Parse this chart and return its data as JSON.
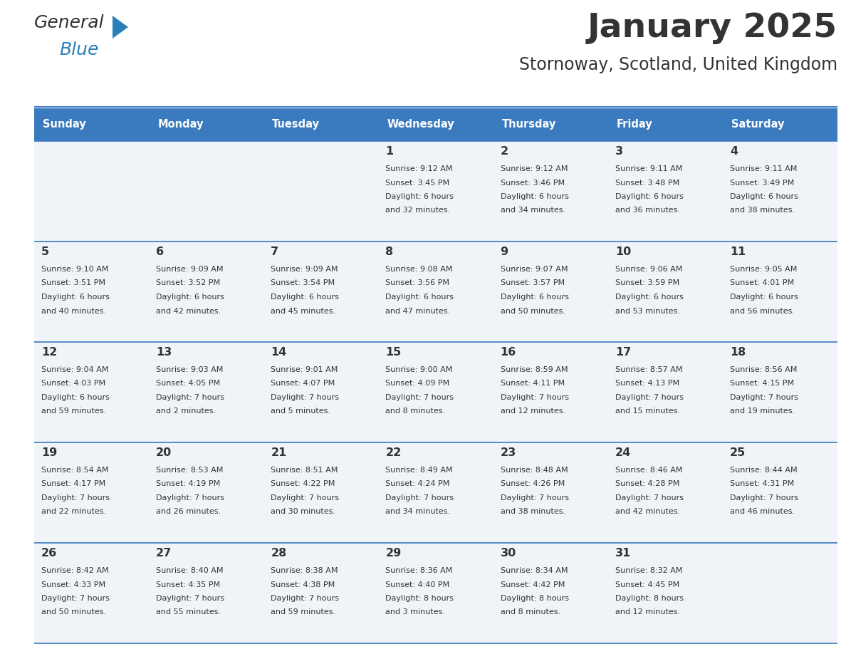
{
  "title": "January 2025",
  "subtitle": "Stornoway, Scotland, United Kingdom",
  "header_bg": "#3a7abf",
  "header_text": "#ffffff",
  "cell_bg": "#f0f4f8",
  "row_line_color": "#3a7abf",
  "text_color": "#333333",
  "days_of_week": [
    "Sunday",
    "Monday",
    "Tuesday",
    "Wednesday",
    "Thursday",
    "Friday",
    "Saturday"
  ],
  "calendar_data": [
    [
      {
        "day": "",
        "sunrise": "",
        "sunset": "",
        "daylight": ""
      },
      {
        "day": "",
        "sunrise": "",
        "sunset": "",
        "daylight": ""
      },
      {
        "day": "",
        "sunrise": "",
        "sunset": "",
        "daylight": ""
      },
      {
        "day": "1",
        "sunrise": "9:12 AM",
        "sunset": "3:45 PM",
        "daylight": "6 hours\nand 32 minutes."
      },
      {
        "day": "2",
        "sunrise": "9:12 AM",
        "sunset": "3:46 PM",
        "daylight": "6 hours\nand 34 minutes."
      },
      {
        "day": "3",
        "sunrise": "9:11 AM",
        "sunset": "3:48 PM",
        "daylight": "6 hours\nand 36 minutes."
      },
      {
        "day": "4",
        "sunrise": "9:11 AM",
        "sunset": "3:49 PM",
        "daylight": "6 hours\nand 38 minutes."
      }
    ],
    [
      {
        "day": "5",
        "sunrise": "9:10 AM",
        "sunset": "3:51 PM",
        "daylight": "6 hours\nand 40 minutes."
      },
      {
        "day": "6",
        "sunrise": "9:09 AM",
        "sunset": "3:52 PM",
        "daylight": "6 hours\nand 42 minutes."
      },
      {
        "day": "7",
        "sunrise": "9:09 AM",
        "sunset": "3:54 PM",
        "daylight": "6 hours\nand 45 minutes."
      },
      {
        "day": "8",
        "sunrise": "9:08 AM",
        "sunset": "3:56 PM",
        "daylight": "6 hours\nand 47 minutes."
      },
      {
        "day": "9",
        "sunrise": "9:07 AM",
        "sunset": "3:57 PM",
        "daylight": "6 hours\nand 50 minutes."
      },
      {
        "day": "10",
        "sunrise": "9:06 AM",
        "sunset": "3:59 PM",
        "daylight": "6 hours\nand 53 minutes."
      },
      {
        "day": "11",
        "sunrise": "9:05 AM",
        "sunset": "4:01 PM",
        "daylight": "6 hours\nand 56 minutes."
      }
    ],
    [
      {
        "day": "12",
        "sunrise": "9:04 AM",
        "sunset": "4:03 PM",
        "daylight": "6 hours\nand 59 minutes."
      },
      {
        "day": "13",
        "sunrise": "9:03 AM",
        "sunset": "4:05 PM",
        "daylight": "7 hours\nand 2 minutes."
      },
      {
        "day": "14",
        "sunrise": "9:01 AM",
        "sunset": "4:07 PM",
        "daylight": "7 hours\nand 5 minutes."
      },
      {
        "day": "15",
        "sunrise": "9:00 AM",
        "sunset": "4:09 PM",
        "daylight": "7 hours\nand 8 minutes."
      },
      {
        "day": "16",
        "sunrise": "8:59 AM",
        "sunset": "4:11 PM",
        "daylight": "7 hours\nand 12 minutes."
      },
      {
        "day": "17",
        "sunrise": "8:57 AM",
        "sunset": "4:13 PM",
        "daylight": "7 hours\nand 15 minutes."
      },
      {
        "day": "18",
        "sunrise": "8:56 AM",
        "sunset": "4:15 PM",
        "daylight": "7 hours\nand 19 minutes."
      }
    ],
    [
      {
        "day": "19",
        "sunrise": "8:54 AM",
        "sunset": "4:17 PM",
        "daylight": "7 hours\nand 22 minutes."
      },
      {
        "day": "20",
        "sunrise": "8:53 AM",
        "sunset": "4:19 PM",
        "daylight": "7 hours\nand 26 minutes."
      },
      {
        "day": "21",
        "sunrise": "8:51 AM",
        "sunset": "4:22 PM",
        "daylight": "7 hours\nand 30 minutes."
      },
      {
        "day": "22",
        "sunrise": "8:49 AM",
        "sunset": "4:24 PM",
        "daylight": "7 hours\nand 34 minutes."
      },
      {
        "day": "23",
        "sunrise": "8:48 AM",
        "sunset": "4:26 PM",
        "daylight": "7 hours\nand 38 minutes."
      },
      {
        "day": "24",
        "sunrise": "8:46 AM",
        "sunset": "4:28 PM",
        "daylight": "7 hours\nand 42 minutes."
      },
      {
        "day": "25",
        "sunrise": "8:44 AM",
        "sunset": "4:31 PM",
        "daylight": "7 hours\nand 46 minutes."
      }
    ],
    [
      {
        "day": "26",
        "sunrise": "8:42 AM",
        "sunset": "4:33 PM",
        "daylight": "7 hours\nand 50 minutes."
      },
      {
        "day": "27",
        "sunrise": "8:40 AM",
        "sunset": "4:35 PM",
        "daylight": "7 hours\nand 55 minutes."
      },
      {
        "day": "28",
        "sunrise": "8:38 AM",
        "sunset": "4:38 PM",
        "daylight": "7 hours\nand 59 minutes."
      },
      {
        "day": "29",
        "sunrise": "8:36 AM",
        "sunset": "4:40 PM",
        "daylight": "8 hours\nand 3 minutes."
      },
      {
        "day": "30",
        "sunrise": "8:34 AM",
        "sunset": "4:42 PM",
        "daylight": "8 hours\nand 8 minutes."
      },
      {
        "day": "31",
        "sunrise": "8:32 AM",
        "sunset": "4:45 PM",
        "daylight": "8 hours\nand 12 minutes."
      },
      {
        "day": "",
        "sunrise": "",
        "sunset": "",
        "daylight": ""
      }
    ]
  ],
  "logo_general_color": "#333333",
  "logo_blue_color": "#2980b9",
  "logo_triangle_color": "#2980b9",
  "fig_width": 11.88,
  "fig_height": 9.18,
  "dpi": 100
}
